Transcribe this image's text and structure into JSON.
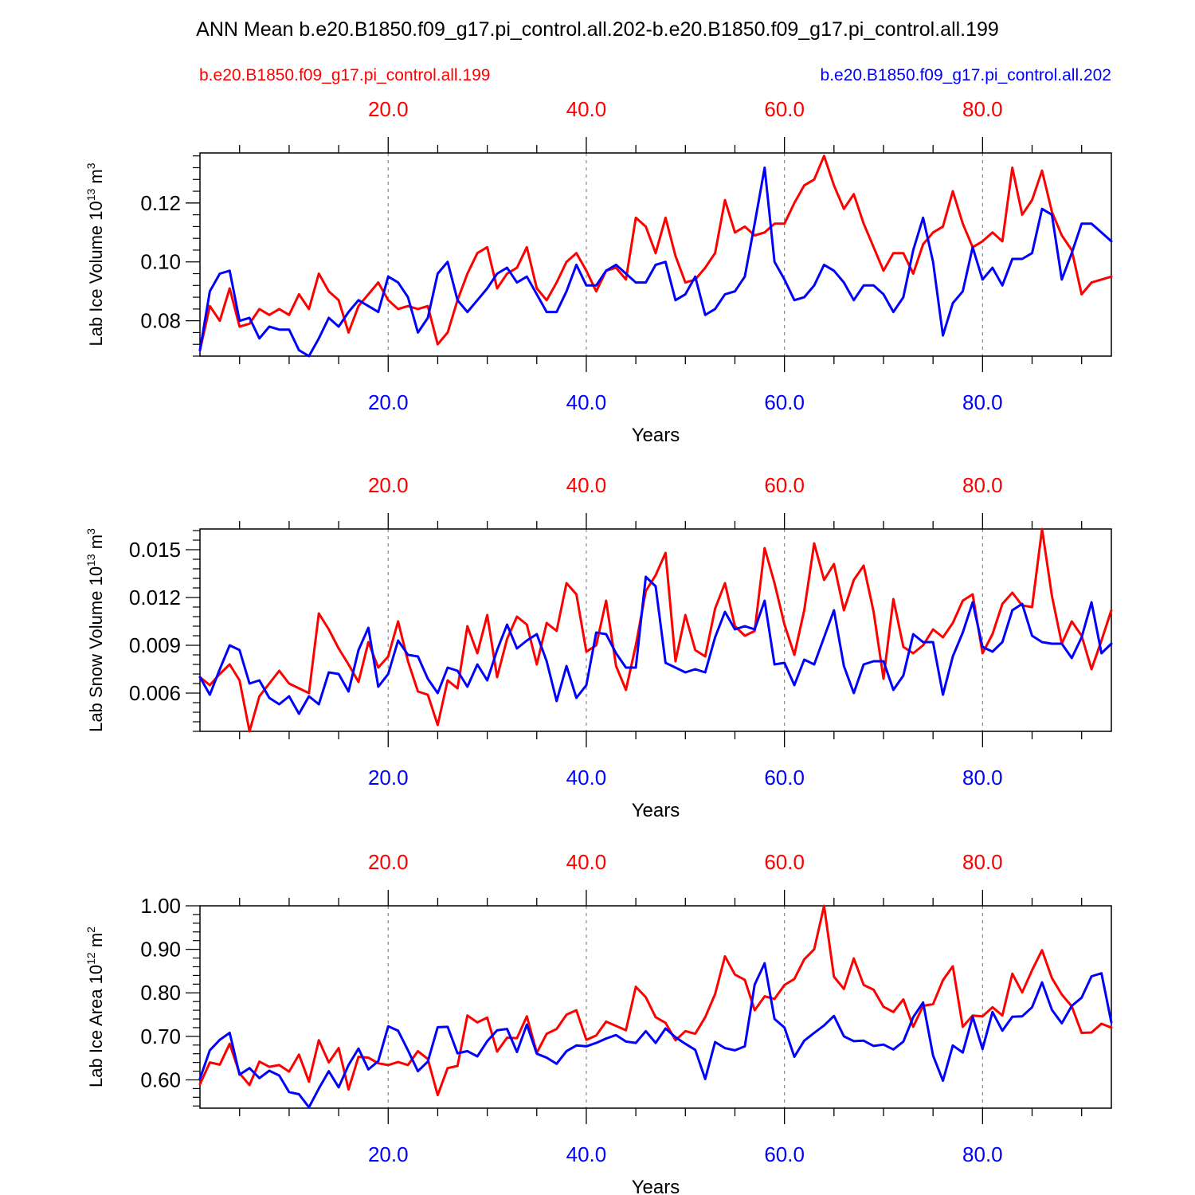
{
  "page": {
    "title": "ANN Mean b.e20.B1850.f09_g17.pi_control.all.202-b.e20.B1850.f09_g17.pi_control.all.199",
    "legend_left": "b.e20.B1850.f09_g17.pi_control.all.199",
    "legend_right": "b.e20.B1850.f09_g17.pi_control.all.202"
  },
  "colors": {
    "case_199": "#ff0000",
    "case_202": "#0000ff",
    "grid": "#888888",
    "axis": "#000000"
  },
  "chart_data": [
    {
      "type": "line",
      "title": "",
      "xlabel": "Years",
      "ylabel_main": "Lab Ice Volume 10",
      "ylabel_exp": "13",
      "ylabel_unit": " m",
      "ylabel_unit_exp": "3",
      "xlim": [
        1,
        93
      ],
      "ylim": [
        0.068,
        0.137
      ],
      "yticks": [
        0.08,
        0.1,
        0.12
      ],
      "ytick_labels": [
        "0.08",
        "0.10",
        "0.12"
      ],
      "yminor": 0.004,
      "xticks": [
        20,
        40,
        60,
        80
      ],
      "xtick_labels_top": [
        "20.0",
        "40.0",
        "60.0",
        "80.0"
      ],
      "xtick_labels_bottom": [
        "20.0",
        "40.0",
        "60.0",
        "80.0"
      ],
      "grid": "vertical dashed at x ticks",
      "series": [
        {
          "name": "b.e20.B1850.f09_g17.pi_control.all.199",
          "color": "#ff0000",
          "values": [
            0.07,
            0.085,
            0.08,
            0.091,
            0.078,
            0.079,
            0.084,
            0.082,
            0.084,
            0.082,
            0.089,
            0.084,
            0.096,
            0.09,
            0.087,
            0.076,
            0.085,
            0.089,
            0.093,
            0.087,
            0.084,
            0.085,
            0.084,
            0.085,
            0.072,
            0.076,
            0.087,
            0.096,
            0.103,
            0.105,
            0.091,
            0.096,
            0.098,
            0.105,
            0.091,
            0.087,
            0.093,
            0.1,
            0.103,
            0.097,
            0.09,
            0.097,
            0.098,
            0.094,
            0.115,
            0.112,
            0.103,
            0.115,
            0.102,
            0.093,
            0.094,
            0.098,
            0.103,
            0.121,
            0.11,
            0.112,
            0.109,
            0.11,
            0.113,
            0.113,
            0.12,
            0.126,
            0.128,
            0.136,
            0.126,
            0.118,
            0.123,
            0.113,
            0.105,
            0.097,
            0.103,
            0.103,
            0.096,
            0.106,
            0.11,
            0.112,
            0.124,
            0.113,
            0.105,
            0.107,
            0.11,
            0.107,
            0.132,
            0.116,
            0.121,
            0.131,
            0.117,
            0.109,
            0.104,
            0.089,
            0.093,
            0.094,
            0.095
          ]
        },
        {
          "name": "b.e20.B1850.f09_g17.pi_control.all.202",
          "color": "#0000ff",
          "values": [
            0.07,
            0.09,
            0.096,
            0.097,
            0.08,
            0.081,
            0.074,
            0.078,
            0.077,
            0.077,
            0.07,
            0.068,
            0.074,
            0.081,
            0.078,
            0.083,
            0.087,
            0.085,
            0.083,
            0.095,
            0.093,
            0.088,
            0.076,
            0.081,
            0.096,
            0.1,
            0.087,
            0.083,
            0.087,
            0.091,
            0.096,
            0.098,
            0.093,
            0.095,
            0.089,
            0.083,
            0.083,
            0.09,
            0.099,
            0.092,
            0.092,
            0.097,
            0.099,
            0.096,
            0.093,
            0.093,
            0.099,
            0.1,
            0.087,
            0.089,
            0.095,
            0.082,
            0.084,
            0.089,
            0.09,
            0.095,
            0.113,
            0.132,
            0.1,
            0.094,
            0.087,
            0.088,
            0.092,
            0.099,
            0.097,
            0.093,
            0.087,
            0.092,
            0.092,
            0.089,
            0.083,
            0.088,
            0.104,
            0.115,
            0.1,
            0.075,
            0.086,
            0.09,
            0.105,
            0.094,
            0.098,
            0.092,
            0.101,
            0.101,
            0.103,
            0.118,
            0.116,
            0.094,
            0.103,
            0.113,
            0.113,
            0.11,
            0.107
          ]
        }
      ]
    },
    {
      "type": "line",
      "title": "",
      "xlabel": "Years",
      "ylabel_main": "Lab Snow Volume 10",
      "ylabel_exp": "13",
      "ylabel_unit": " m",
      "ylabel_unit_exp": "3",
      "xlim": [
        1,
        93
      ],
      "ylim": [
        0.0036,
        0.0163
      ],
      "yticks": [
        0.006,
        0.009,
        0.012,
        0.015
      ],
      "ytick_labels": [
        "0.006",
        "0.009",
        "0.012",
        "0.015"
      ],
      "yminor": 0.0006,
      "xticks": [
        20,
        40,
        60,
        80
      ],
      "xtick_labels_top": [
        "20.0",
        "40.0",
        "60.0",
        "80.0"
      ],
      "xtick_labels_bottom": [
        "20.0",
        "40.0",
        "60.0",
        "80.0"
      ],
      "grid": "vertical dashed at x ticks",
      "series": [
        {
          "name": "b.e20.B1850.f09_g17.pi_control.all.199",
          "color": "#ff0000",
          "values": [
            0.007,
            0.0065,
            0.0072,
            0.0078,
            0.0068,
            0.0036,
            0.0058,
            0.0066,
            0.0074,
            0.0066,
            0.0063,
            0.006,
            0.011,
            0.01,
            0.0088,
            0.0078,
            0.0067,
            0.0092,
            0.0076,
            0.0083,
            0.0105,
            0.008,
            0.0061,
            0.0059,
            0.004,
            0.0068,
            0.0063,
            0.0102,
            0.0085,
            0.0109,
            0.007,
            0.0094,
            0.0108,
            0.0103,
            0.0078,
            0.0104,
            0.0099,
            0.0129,
            0.0122,
            0.0086,
            0.009,
            0.0118,
            0.0077,
            0.0062,
            0.009,
            0.0124,
            0.0134,
            0.0148,
            0.008,
            0.0109,
            0.0087,
            0.0083,
            0.0113,
            0.0129,
            0.0102,
            0.0096,
            0.0099,
            0.0151,
            0.0129,
            0.0103,
            0.0084,
            0.0112,
            0.0154,
            0.0131,
            0.0141,
            0.0112,
            0.0131,
            0.014,
            0.0111,
            0.0069,
            0.0119,
            0.0089,
            0.0085,
            0.009,
            0.01,
            0.0095,
            0.0104,
            0.0118,
            0.0122,
            0.0085,
            0.0097,
            0.0116,
            0.0123,
            0.0115,
            0.0114,
            0.0163,
            0.0121,
            0.0091,
            0.0105,
            0.0096,
            0.0075,
            0.0093,
            0.0112
          ]
        },
        {
          "name": "b.e20.B1850.f09_g17.pi_control.all.202",
          "color": "#0000ff",
          "values": [
            0.007,
            0.0059,
            0.0075,
            0.009,
            0.0087,
            0.0066,
            0.0068,
            0.0057,
            0.0053,
            0.0058,
            0.0047,
            0.0058,
            0.0053,
            0.0073,
            0.0072,
            0.0061,
            0.0087,
            0.0101,
            0.0064,
            0.0072,
            0.0093,
            0.0084,
            0.0083,
            0.0069,
            0.006,
            0.0076,
            0.0074,
            0.0064,
            0.0078,
            0.0068,
            0.0087,
            0.0103,
            0.0088,
            0.0093,
            0.0097,
            0.008,
            0.0055,
            0.0077,
            0.0057,
            0.0065,
            0.0098,
            0.0097,
            0.0085,
            0.0076,
            0.0076,
            0.0133,
            0.0127,
            0.0079,
            0.0076,
            0.0073,
            0.0075,
            0.0073,
            0.0095,
            0.0111,
            0.01,
            0.0102,
            0.01,
            0.0118,
            0.0078,
            0.0079,
            0.0065,
            0.0081,
            0.0078,
            0.0095,
            0.0112,
            0.0077,
            0.006,
            0.0078,
            0.008,
            0.008,
            0.0062,
            0.0071,
            0.0097,
            0.0092,
            0.0092,
            0.0059,
            0.0083,
            0.0098,
            0.0117,
            0.0089,
            0.0086,
            0.0092,
            0.0112,
            0.0116,
            0.0096,
            0.0092,
            0.0091,
            0.0091,
            0.0082,
            0.0095,
            0.0117,
            0.0085,
            0.0091
          ]
        }
      ]
    },
    {
      "type": "line",
      "title": "",
      "xlabel": "Years",
      "ylabel_main": "Lab Ice Area 10",
      "ylabel_exp": "12",
      "ylabel_unit": " m",
      "ylabel_unit_exp": "2",
      "xlim": [
        1,
        93
      ],
      "ylim": [
        0.535,
        1.0
      ],
      "yticks": [
        0.6,
        0.7,
        0.8,
        0.9,
        1.0
      ],
      "ytick_labels": [
        "0.60",
        "0.70",
        "0.80",
        "0.90",
        "1.00"
      ],
      "yminor": 0.02,
      "xticks": [
        20,
        40,
        60,
        80
      ],
      "xtick_labels_top": [
        "20.0",
        "40.0",
        "60.0",
        "80.0"
      ],
      "xtick_labels_bottom": [
        "20.0",
        "40.0",
        "60.0",
        "80.0"
      ],
      "grid": "vertical dashed at x ticks",
      "series": [
        {
          "name": "b.e20.B1850.f09_g17.pi_control.all.199",
          "color": "#ff0000",
          "values": [
            0.59,
            0.64,
            0.635,
            0.683,
            0.615,
            0.588,
            0.642,
            0.63,
            0.634,
            0.619,
            0.658,
            0.596,
            0.691,
            0.64,
            0.673,
            0.578,
            0.653,
            0.651,
            0.638,
            0.634,
            0.641,
            0.634,
            0.666,
            0.648,
            0.565,
            0.627,
            0.632,
            0.748,
            0.732,
            0.743,
            0.665,
            0.697,
            0.696,
            0.746,
            0.662,
            0.706,
            0.717,
            0.75,
            0.76,
            0.692,
            0.702,
            0.734,
            0.724,
            0.714,
            0.814,
            0.79,
            0.744,
            0.731,
            0.691,
            0.712,
            0.706,
            0.744,
            0.797,
            0.884,
            0.842,
            0.83,
            0.76,
            0.792,
            0.786,
            0.818,
            0.832,
            0.877,
            0.9,
            1.0,
            0.837,
            0.809,
            0.879,
            0.818,
            0.807,
            0.768,
            0.756,
            0.785,
            0.722,
            0.77,
            0.774,
            0.829,
            0.861,
            0.722,
            0.748,
            0.746,
            0.767,
            0.748,
            0.844,
            0.801,
            0.852,
            0.898,
            0.834,
            0.796,
            0.769,
            0.708,
            0.709,
            0.729,
            0.72
          ]
        },
        {
          "name": "b.e20.B1850.f09_g17.pi_control.all.202",
          "color": "#0000ff",
          "values": [
            0.603,
            0.668,
            0.692,
            0.708,
            0.612,
            0.627,
            0.604,
            0.621,
            0.61,
            0.572,
            0.567,
            0.537,
            0.58,
            0.62,
            0.583,
            0.634,
            0.672,
            0.624,
            0.643,
            0.723,
            0.713,
            0.668,
            0.62,
            0.642,
            0.721,
            0.722,
            0.661,
            0.666,
            0.654,
            0.689,
            0.714,
            0.717,
            0.664,
            0.727,
            0.66,
            0.651,
            0.637,
            0.666,
            0.679,
            0.677,
            0.685,
            0.695,
            0.703,
            0.688,
            0.685,
            0.712,
            0.685,
            0.718,
            0.698,
            0.683,
            0.669,
            0.602,
            0.687,
            0.673,
            0.668,
            0.677,
            0.819,
            0.868,
            0.74,
            0.72,
            0.653,
            0.69,
            0.708,
            0.725,
            0.747,
            0.7,
            0.689,
            0.69,
            0.678,
            0.681,
            0.67,
            0.688,
            0.744,
            0.778,
            0.656,
            0.598,
            0.679,
            0.663,
            0.745,
            0.671,
            0.756,
            0.713,
            0.745,
            0.746,
            0.767,
            0.824,
            0.761,
            0.73,
            0.77,
            0.789,
            0.838,
            0.845,
            0.732
          ]
        }
      ]
    }
  ]
}
